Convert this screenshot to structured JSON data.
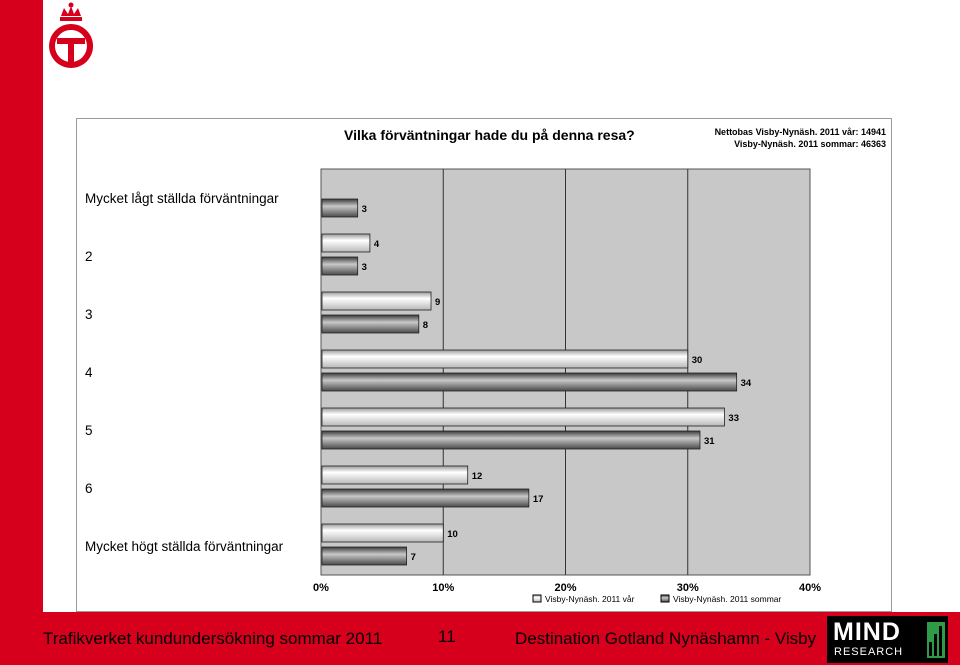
{
  "footer": {
    "left": "Trafikverket kundundersökning sommar 2011",
    "page": "11",
    "right": "Destination Gotland Nynäshamn - Visby"
  },
  "logo": {
    "mind": "MIND",
    "research": "RESEARCH",
    "brand_color": "#2e9b48"
  },
  "colors": {
    "accent": "#d6001c",
    "plot_bg": "#c8c8c8",
    "series1": "#e8e8e8",
    "series2": "#6a6a6a"
  },
  "chart_data": {
    "type": "bar",
    "orientation": "horizontal",
    "title": "Vilka förväntningar hade du på denna resa?",
    "base_note_1": "Nettobas  Visby-Nynäsh. 2011 vår: 14941",
    "base_note_2": "Visby-Nynäsh. 2011 sommar: 46363",
    "categories": [
      "Mycket lågt ställda förväntningar",
      "2",
      "3",
      "4",
      "5",
      "6",
      "Mycket högt ställda förväntningar"
    ],
    "series": [
      {
        "name": "Visby-Nynäsh. 2011 vår",
        "values": [
          null,
          4,
          9,
          30,
          33,
          12,
          10
        ]
      },
      {
        "name": "Visby-Nynäsh. 2011 sommar",
        "values": [
          3,
          3,
          8,
          34,
          31,
          17,
          7
        ]
      }
    ],
    "xlim": [
      0,
      40
    ],
    "xticks": [
      "0%",
      "10%",
      "20%",
      "30%",
      "40%"
    ],
    "grid": true,
    "legend_position": "bottom"
  }
}
